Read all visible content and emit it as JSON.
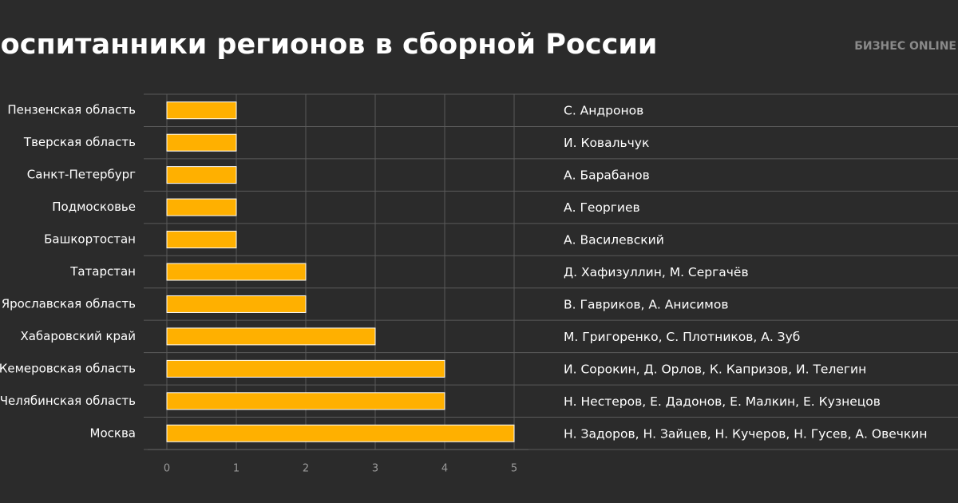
{
  "chart_data": {
    "type": "bar",
    "orientation": "horizontal",
    "title": "Воспитанники регионов в сборной России",
    "logo": "БИЗНЕС ONLINE",
    "categories": [
      "Пензенская область",
      "Тверская область",
      "Санкт-Петербург",
      "Подмосковье",
      "Башкортостан",
      "Татарстан",
      "Ярославская область",
      "Хабаровский край",
      "Кемеровская область",
      "Челябинская область",
      "Москва"
    ],
    "values": [
      1,
      1,
      1,
      1,
      1,
      2,
      2,
      3,
      4,
      4,
      5
    ],
    "annotations": [
      "С. Андронов",
      "И. Ковальчук",
      "А. Барабанов",
      "А. Георгиев",
      "А. Василевский",
      "Д. Хафизуллин, М. Сергачёв",
      "В. Гавриков, А. Анисимов",
      "М. Григоренко, С. Плотников, А. Зуб",
      "И. Сорокин, Д. Орлов, К. Капризов, И. Телегин",
      "Н. Нестеров, Е. Дадонов, Е. Малкин, Е. Кузнецов",
      "Н. Задоров, Н. Зайцев, Н. Кучеров, Н. Гусев, А. Овечкин"
    ],
    "color": "#ffb000",
    "xlim": [
      0,
      5
    ],
    "xticks": [
      0,
      1,
      2,
      3,
      4,
      5
    ],
    "grid": true
  }
}
